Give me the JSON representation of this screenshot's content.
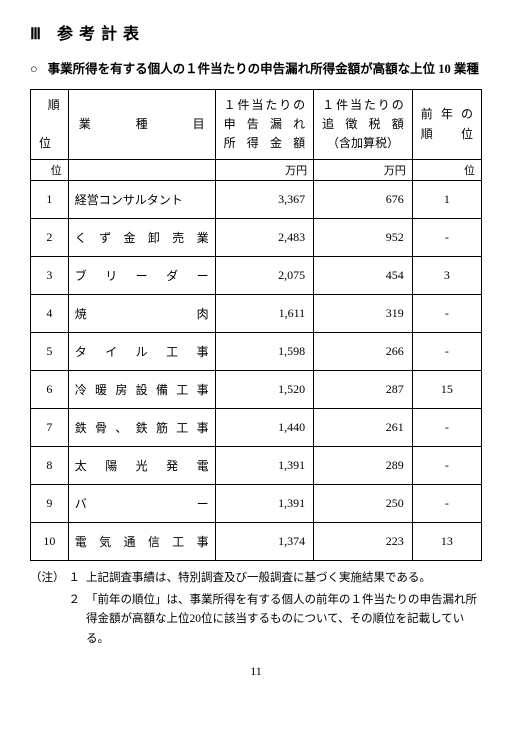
{
  "section_number": "Ⅲ",
  "section_title": "参考計表",
  "subtitle_marker": "○",
  "subtitle": "事業所得を有する個人の１件当たりの申告漏れ所得金額が高額な上位 10 業種",
  "columns": {
    "rank": "順位",
    "rank_top": "順",
    "rank_bottom": "位",
    "category": "業種目",
    "amount_l1": "１件当たりの",
    "amount_l2": "申告漏れ",
    "amount_l3": "所得金額",
    "tax_l1": "１件当たりの",
    "tax_l2": "追徴税額",
    "tax_l3": "（含加算税）",
    "prev_l1": "前年の",
    "prev_l2": "順位"
  },
  "units": {
    "rank": "位",
    "amount": "万円",
    "tax": "万円",
    "prev": "位"
  },
  "rows": [
    {
      "rank": "1",
      "category": "経営コンサルタント",
      "amount": "3,367",
      "tax": "676",
      "prev": "1",
      "justify": false
    },
    {
      "rank": "2",
      "category": "くず金卸売業",
      "amount": "2,483",
      "tax": "952",
      "prev": "-",
      "justify": true
    },
    {
      "rank": "3",
      "category": "ブリーダー",
      "amount": "2,075",
      "tax": "454",
      "prev": "3",
      "justify": true
    },
    {
      "rank": "4",
      "category": "焼肉",
      "amount": "1,611",
      "tax": "319",
      "prev": "-",
      "justify": true
    },
    {
      "rank": "5",
      "category": "タイル工事",
      "amount": "1,598",
      "tax": "266",
      "prev": "-",
      "justify": true
    },
    {
      "rank": "6",
      "category": "冷暖房設備工事",
      "amount": "1,520",
      "tax": "287",
      "prev": "15",
      "justify": true
    },
    {
      "rank": "7",
      "category": "鉄骨、鉄筋工事",
      "amount": "1,440",
      "tax": "261",
      "prev": "-",
      "justify": true
    },
    {
      "rank": "8",
      "category": "太陽光発電",
      "amount": "1,391",
      "tax": "289",
      "prev": "-",
      "justify": true
    },
    {
      "rank": "9",
      "category": "バー",
      "amount": "1,391",
      "tax": "250",
      "prev": "-",
      "justify": true
    },
    {
      "rank": "10",
      "category": "電気通信工事",
      "amount": "1,374",
      "tax": "223",
      "prev": "13",
      "justify": true
    }
  ],
  "notes_label": "（注）",
  "notes": [
    {
      "n": "１",
      "text": "上記調査事績は、特別調査及び一般調査に基づく実施結果である。"
    },
    {
      "n": "２",
      "text": "「前年の順位」は、事業所得を有する個人の前年の１件当たりの申告漏れ所得金額が高額な上位20位に該当するものについて、その順位を記載している。"
    }
  ],
  "page_number": "11"
}
